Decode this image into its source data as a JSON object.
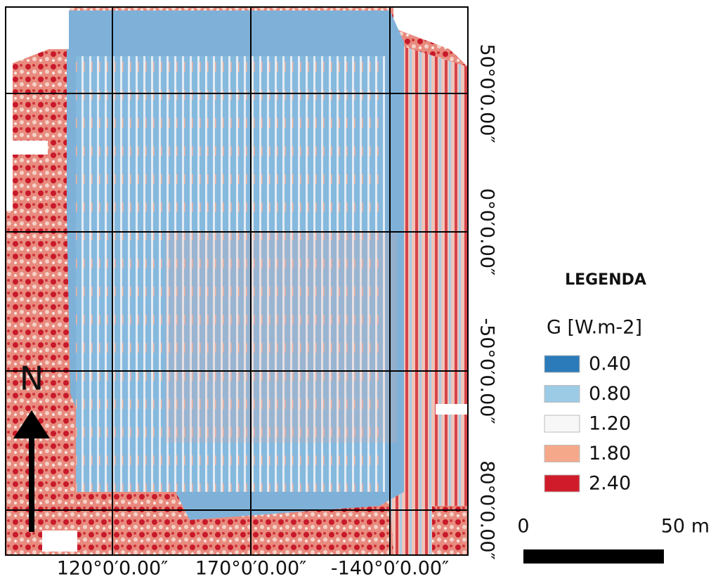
{
  "map": {
    "grid_labels": {
      "bottom": [
        "120°0′0.00″",
        "170°0′0.00″",
        "-140°0′0.00″"
      ],
      "right": [
        "50°0′0.00″",
        "0°0′0.00″",
        "-50°0′0.00″",
        "80°0′0.00″"
      ]
    },
    "north": "N",
    "legend": {
      "title": "LEGENDA",
      "subtitle": "G [W.m-2]",
      "items": [
        {
          "label": "0.40",
          "color": "#2b7bba"
        },
        {
          "label": "0.80",
          "color": "#9ccbe6"
        },
        {
          "label": "1.20",
          "color": "#f7f7f7"
        },
        {
          "label": "1.80",
          "color": "#f5a98a"
        },
        {
          "label": "2.40",
          "color": "#d01c2a"
        }
      ]
    },
    "scale_bar": {
      "start": "0",
      "end": "50 m"
    }
  }
}
